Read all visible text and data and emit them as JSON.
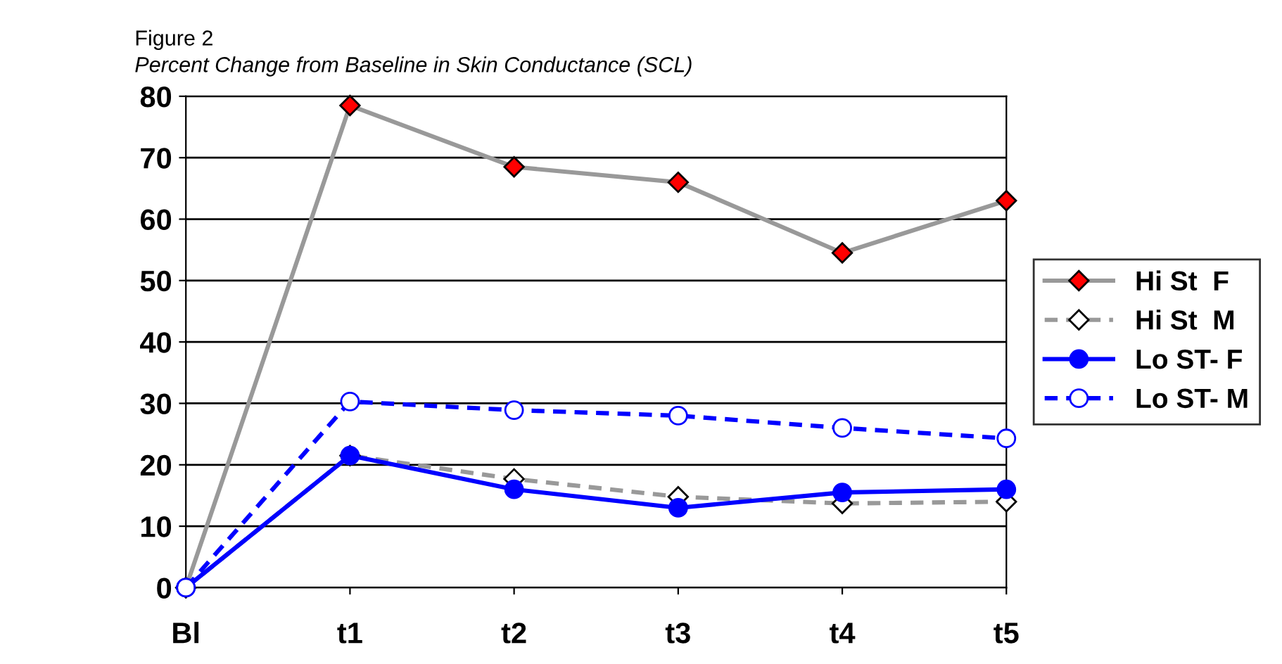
{
  "chart_data": {
    "type": "line",
    "title": "Figure 2",
    "subtitle": "Percent Change from Baseline in Skin Conductance (SCL)",
    "categories": [
      "Bl",
      "t1",
      "t2",
      "t3",
      "t4",
      "t5"
    ],
    "series": [
      {
        "name": "Hi St  F",
        "color": "#999999",
        "colors": [
          "#ff0000",
          "#ff0000",
          "#ff0000",
          "#ff0000",
          "#ff0000",
          "#ff0000"
        ],
        "marker": "diamond",
        "line_style": "solid",
        "values": [
          0,
          78.5,
          68.5,
          66,
          54.5,
          63
        ]
      },
      {
        "name": "Hi St  M",
        "color": "#999999",
        "colors": [
          "#ffffff",
          "#ffffff",
          "#ffffff",
          "#ffffff",
          "#ffffff",
          "#ffffff"
        ],
        "marker": "diamond",
        "line_style": "dashed",
        "values": [
          0,
          21.5,
          17.7,
          14.8,
          13.7,
          14
        ]
      },
      {
        "name": "Lo ST- F",
        "color": "#0000ff",
        "colors": [
          "#0000ff",
          "#0000ff",
          "#0000ff",
          "#0000ff",
          "#0000ff",
          "#0000ff"
        ],
        "marker": "circle",
        "line_style": "solid",
        "values": [
          0,
          21.5,
          16,
          13,
          15.5,
          16
        ]
      },
      {
        "name": "Lo ST- M",
        "color": "#0000ff",
        "colors": [
          "#ffffff",
          "#ffffff",
          "#ffffff",
          "#ffffff",
          "#ffffff",
          "#ffffff"
        ],
        "marker": "circle",
        "line_style": "dashed",
        "values": [
          0,
          30.3,
          28.9,
          28,
          26,
          24.3
        ]
      }
    ],
    "ylim": [
      0,
      80
    ],
    "yticks": [
      0,
      10,
      20,
      30,
      40,
      50,
      60,
      70,
      80
    ],
    "grid": "y",
    "legend": "right"
  }
}
